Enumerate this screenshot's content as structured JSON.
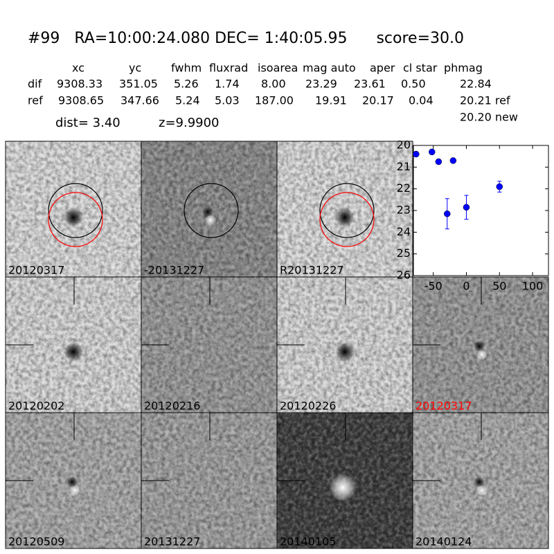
{
  "header": {
    "title": "#99   RA=10:00:24.080 DEC= 1:40:05.95      score=30.0"
  },
  "table": {
    "columns": [
      "xc",
      "yc",
      "fwhm",
      "fluxrad",
      "isoarea",
      "mag auto",
      "aper",
      "cl star",
      "phmag"
    ],
    "rows": [
      [
        "dif",
        "9308.33",
        "351.05",
        "5.26",
        "1.74",
        "8.00",
        "23.29",
        "23.61",
        "0.50",
        "22.84"
      ],
      [
        "ref",
        "9308.65",
        "347.66",
        "5.24",
        "5.03",
        "187.00",
        "19.91",
        "20.17",
        "0.04",
        "20.21 ref"
      ]
    ],
    "extra": "20.20 new",
    "dist": "dist=  3.40",
    "z": "z=9.9900"
  },
  "stamps": [
    "20120317",
    "-20131227",
    "R20131227",
    "20120202",
    "20120216",
    "20120226",
    "20120317",
    "20120509",
    "20131227",
    "20140105",
    "20140124"
  ],
  "chart_data": {
    "type": "scatter",
    "x": [
      -76,
      -52,
      -42,
      -29,
      -20,
      0,
      50
    ],
    "values": [
      20.4,
      20.3,
      20.75,
      23.15,
      20.7,
      22.85,
      21.9
    ],
    "errors": [
      0.1,
      0.05,
      0.1,
      0.7,
      0.1,
      0.55,
      0.25
    ],
    "xlim": [
      -80,
      124
    ],
    "ylim": [
      20,
      26
    ],
    "y_inverted": true,
    "xticks": [
      -50,
      0,
      50,
      100
    ],
    "yticks": [
      20,
      21,
      22,
      23,
      24,
      25,
      26
    ],
    "color": "#0000ff"
  }
}
